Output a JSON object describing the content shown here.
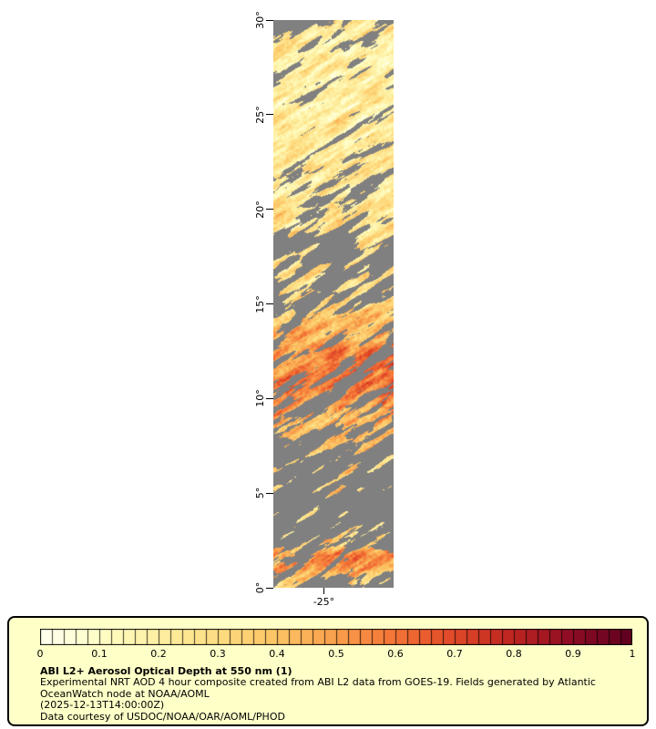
{
  "map": {
    "lat_ticks": [
      {
        "label": "30°",
        "lat": 30
      },
      {
        "label": "25°",
        "lat": 25
      },
      {
        "label": "20°",
        "lat": 20
      },
      {
        "label": "15°",
        "lat": 15
      },
      {
        "label": "10°",
        "lat": 10
      },
      {
        "label": "5°",
        "lat": 5
      },
      {
        "label": "0°",
        "lat": 0
      }
    ],
    "lon_tick": {
      "label": "-25°",
      "frac": 0.42
    }
  },
  "legend": {
    "background": "#ffffc8",
    "border_color": "#000000",
    "title": "ABI L2+ Aerosol Optical Depth at 550 nm (1)",
    "desc1": "Experimental NRT AOD 4 hour composite created from ABI L2 data from GOES-19. Fields generated by Atlantic",
    "desc2": "OceanWatch node at NOAA/AOML",
    "timestamp": "(2025-12-13T14:00:00Z)",
    "credit": "Data courtesy of USDOC/NOAA/OAR/AOML/PHOD"
  },
  "chart_data": {
    "type": "heatmap",
    "title": "ABI L2+ Aerosol Optical Depth at 550 nm (1)",
    "y_axis": {
      "tick_labels": [
        "0°",
        "5°",
        "10°",
        "15°",
        "20°",
        "25°",
        "30°"
      ],
      "range_deg": [
        0,
        30
      ]
    },
    "x_axis": {
      "tick_labels": [
        "-25°"
      ]
    },
    "colorbar": {
      "range": [
        0,
        1
      ],
      "tick_labels": [
        "0",
        "0.1",
        "0.2",
        "0.3",
        "0.4",
        "0.5",
        "0.6",
        "0.7",
        "0.8",
        "0.9",
        "1"
      ],
      "stops": [
        "#fffff0",
        "#fffdc4",
        "#feefa1",
        "#fedc81",
        "#fcc363",
        "#f99e4b",
        "#f37336",
        "#e04727",
        "#bc2420",
        "#8b0c24",
        "#5e001e"
      ],
      "segments": 50
    },
    "missing_data_color": "#808080",
    "bands": [
      {
        "lat": 30.0,
        "aod": 0.22,
        "cloud": 0.55
      },
      {
        "lat": 29.0,
        "aod": 0.22,
        "cloud": 0.35
      },
      {
        "lat": 28.0,
        "aod": 0.22,
        "cloud": 0.18
      },
      {
        "lat": 26.0,
        "aod": 0.2,
        "cloud": 0.12
      },
      {
        "lat": 24.0,
        "aod": 0.22,
        "cloud": 0.22
      },
      {
        "lat": 22.0,
        "aod": 0.22,
        "cloud": 0.28
      },
      {
        "lat": 20.5,
        "aod": 0.25,
        "cloud": 0.35
      },
      {
        "lat": 19.0,
        "aod": 0.25,
        "cloud": 0.55
      },
      {
        "lat": 17.5,
        "aod": 0.27,
        "cloud": 0.7
      },
      {
        "lat": 16.0,
        "aod": 0.3,
        "cloud": 0.55
      },
      {
        "lat": 15.0,
        "aod": 0.33,
        "cloud": 0.4
      },
      {
        "lat": 14.0,
        "aod": 0.38,
        "cloud": 0.35
      },
      {
        "lat": 13.0,
        "aod": 0.45,
        "cloud": 0.35
      },
      {
        "lat": 12.0,
        "aod": 0.58,
        "cloud": 0.38
      },
      {
        "lat": 11.0,
        "aod": 0.6,
        "cloud": 0.4
      },
      {
        "lat": 10.0,
        "aod": 0.52,
        "cloud": 0.38
      },
      {
        "lat": 9.0,
        "aod": 0.45,
        "cloud": 0.42
      },
      {
        "lat": 8.0,
        "aod": 0.4,
        "cloud": 0.55
      },
      {
        "lat": 7.0,
        "aod": 0.35,
        "cloud": 0.75
      },
      {
        "lat": 6.0,
        "aod": 0.32,
        "cloud": 0.93
      },
      {
        "lat": 4.0,
        "aod": 0.3,
        "cloud": 0.97
      },
      {
        "lat": 3.0,
        "aod": 0.3,
        "cloud": 0.96
      },
      {
        "lat": 2.2,
        "aod": 0.4,
        "cloud": 0.75
      },
      {
        "lat": 1.7,
        "aod": 0.55,
        "cloud": 0.2
      },
      {
        "lat": 1.0,
        "aod": 0.5,
        "cloud": 0.3
      },
      {
        "lat": 0.5,
        "aod": 0.4,
        "cloud": 0.8
      },
      {
        "lat": 0.0,
        "aod": 0.35,
        "cloud": 0.95
      }
    ]
  }
}
